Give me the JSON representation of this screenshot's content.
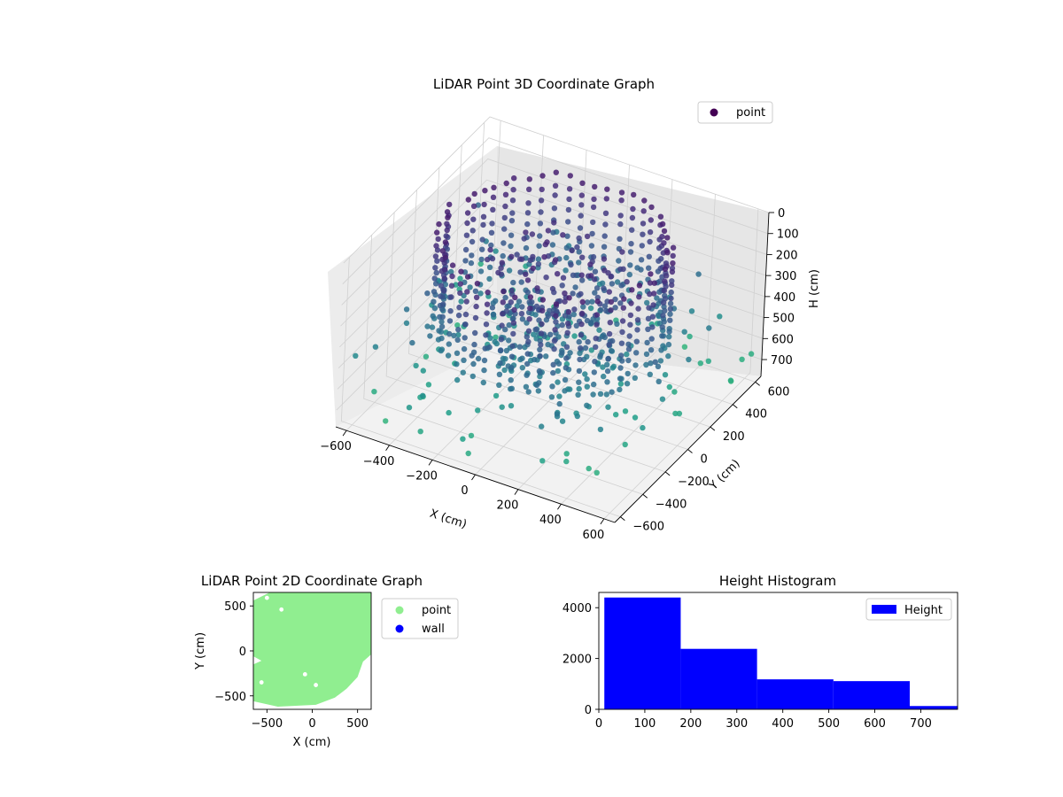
{
  "chart_data": [
    {
      "type": "scatter",
      "projection": "3d",
      "title": "LiDAR Point 3D Coordinate Graph",
      "xlabel": "X (cm)",
      "ylabel": "Y (cm)",
      "zlabel": "H (cm)",
      "x_ticks": [
        "−600",
        "−400",
        "−200",
        "0",
        "200",
        "400",
        "600"
      ],
      "y_ticks": [
        "−600",
        "−400",
        "−200",
        "0",
        "200",
        "400",
        "600"
      ],
      "z_ticks": [
        "0",
        "100",
        "200",
        "300",
        "400",
        "500",
        "600",
        "700"
      ],
      "xlim": [
        -650,
        650
      ],
      "ylim": [
        -650,
        650
      ],
      "zlim": [
        0,
        780
      ],
      "z_inverted": true,
      "colormap": "viridis",
      "grid": true,
      "legend": {
        "position": "top-right",
        "entries": [
          {
            "label": "point",
            "color": "#440154"
          }
        ]
      },
      "series": [
        {
          "name": "point"
        }
      ]
    },
    {
      "type": "scatter",
      "title": "LiDAR Point 2D Coordinate Graph",
      "xlabel": "X (cm)",
      "ylabel": "Y (cm)",
      "x_ticks": [
        "−500",
        "0",
        "500"
      ],
      "y_ticks": [
        "500",
        "0",
        "−500"
      ],
      "xlim": [
        -650,
        650
      ],
      "ylim": [
        -650,
        650
      ],
      "legend": {
        "position": "outside-right",
        "entries": [
          {
            "label": "point",
            "color": "#90ee90"
          },
          {
            "label": "wall",
            "color": "#0000ff"
          }
        ]
      },
      "series": [
        {
          "name": "point",
          "color": "#90ee90"
        },
        {
          "name": "wall",
          "color": "#0000ff"
        }
      ]
    },
    {
      "type": "bar",
      "subtype": "histogram",
      "title": "Height Histogram",
      "x_ticks": [
        "0",
        "100",
        "200",
        "300",
        "400",
        "500",
        "600",
        "700"
      ],
      "y_ticks": [
        "0",
        "2000",
        "4000"
      ],
      "xlim": [
        0,
        780
      ],
      "ylim": [
        0,
        4600
      ],
      "bins": [
        {
          "start": 12,
          "end": 178,
          "count": 4400
        },
        {
          "start": 178,
          "end": 344,
          "count": 2380
        },
        {
          "start": 344,
          "end": 510,
          "count": 1180
        },
        {
          "start": 510,
          "end": 676,
          "count": 1110
        },
        {
          "start": 676,
          "end": 842,
          "count": 130
        }
      ],
      "color": "#0000ff",
      "legend": {
        "position": "top-right",
        "entries": [
          {
            "label": "Height",
            "color": "#0000ff"
          }
        ]
      },
      "series": [
        {
          "name": "Height"
        }
      ]
    }
  ]
}
